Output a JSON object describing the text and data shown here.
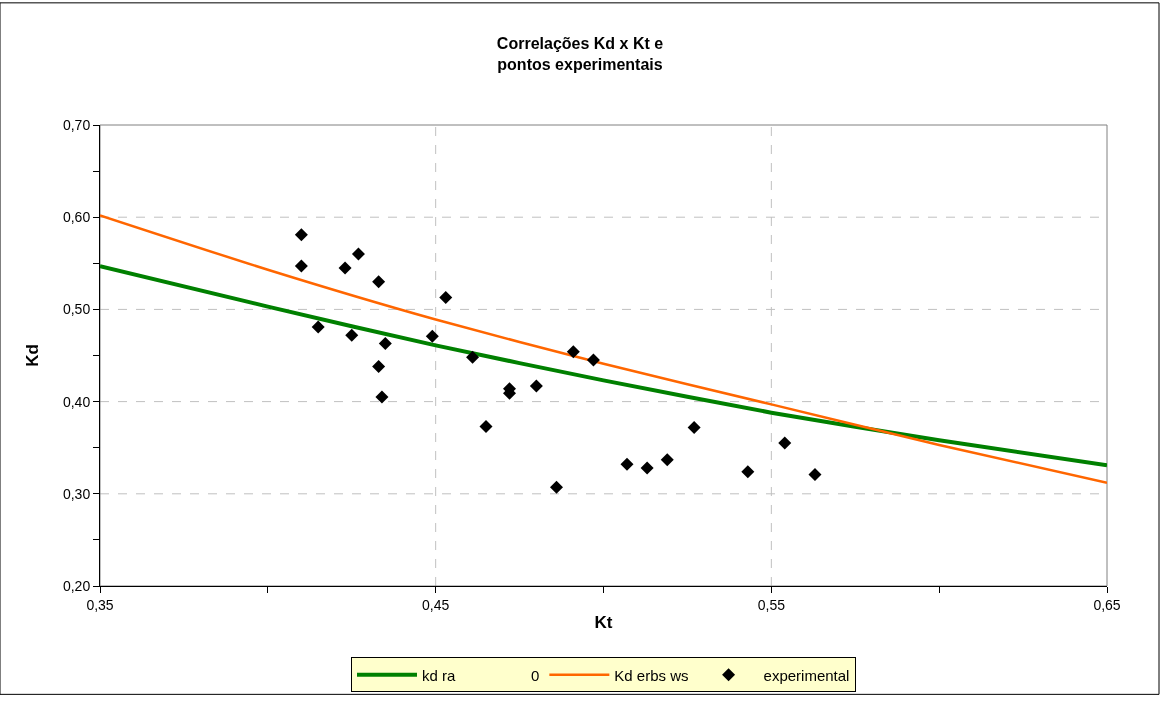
{
  "chart_data": {
    "type": "line",
    "title": "Correlações Kd x Kt e\npontos experimentais",
    "xlabel": "Kt",
    "ylabel": "Kd",
    "xlim": [
      0.35,
      0.65
    ],
    "ylim": [
      0.2,
      0.7
    ],
    "xticks": [
      {
        "value": 0.35,
        "label": "0,35"
      },
      {
        "value": 0.4,
        "label": null
      },
      {
        "value": 0.45,
        "label": "0,45"
      },
      {
        "value": 0.5,
        "label": null
      },
      {
        "value": 0.55,
        "label": "0,55"
      },
      {
        "value": 0.6,
        "label": null
      },
      {
        "value": 0.65,
        "label": "0,65"
      }
    ],
    "yticks": [
      {
        "value": 0.2,
        "label": "0,20"
      },
      {
        "value": 0.25,
        "label": null
      },
      {
        "value": 0.3,
        "label": "0,30"
      },
      {
        "value": 0.35,
        "label": null
      },
      {
        "value": 0.4,
        "label": "0,40"
      },
      {
        "value": 0.45,
        "label": null
      },
      {
        "value": 0.5,
        "label": "0,50"
      },
      {
        "value": 0.55,
        "label": null
      },
      {
        "value": 0.6,
        "label": "0,60"
      },
      {
        "value": 0.65,
        "label": null
      },
      {
        "value": 0.7,
        "label": "0,70"
      }
    ],
    "grid": true,
    "legend": "bottom",
    "series": [
      {
        "name": "kd ra",
        "color": "#008000",
        "x": [
          0.35,
          0.4,
          0.45,
          0.5,
          0.55,
          0.6,
          0.65
        ],
        "values": [
          0.547,
          0.503,
          0.461,
          0.423,
          0.388,
          0.358,
          0.331
        ]
      },
      {
        "name": "0",
        "line_style": "none"
      },
      {
        "name": "Kd erbs ws",
        "color": "#ff6600",
        "x": [
          0.35,
          0.4,
          0.45,
          0.5,
          0.55,
          0.6,
          0.65
        ],
        "values": [
          0.602,
          0.543,
          0.489,
          0.441,
          0.397,
          0.353,
          0.312
        ]
      },
      {
        "name": "experimental",
        "type": "scatter",
        "color": "#000000",
        "marker": "diamond",
        "x": [
          0.41,
          0.41,
          0.415,
          0.423,
          0.425,
          0.427,
          0.433,
          0.435,
          0.433,
          0.434,
          0.449,
          0.453,
          0.461,
          0.465,
          0.472,
          0.472,
          0.48,
          0.486,
          0.491,
          0.497,
          0.507,
          0.513,
          0.519,
          0.527,
          0.543,
          0.554,
          0.563
        ],
        "values": [
          0.581,
          0.547,
          0.481,
          0.545,
          0.472,
          0.56,
          0.53,
          0.463,
          0.438,
          0.405,
          0.471,
          0.513,
          0.448,
          0.373,
          0.409,
          0.414,
          0.417,
          0.307,
          0.454,
          0.445,
          0.332,
          0.328,
          0.337,
          0.372,
          0.324,
          0.355,
          0.321
        ]
      }
    ]
  }
}
